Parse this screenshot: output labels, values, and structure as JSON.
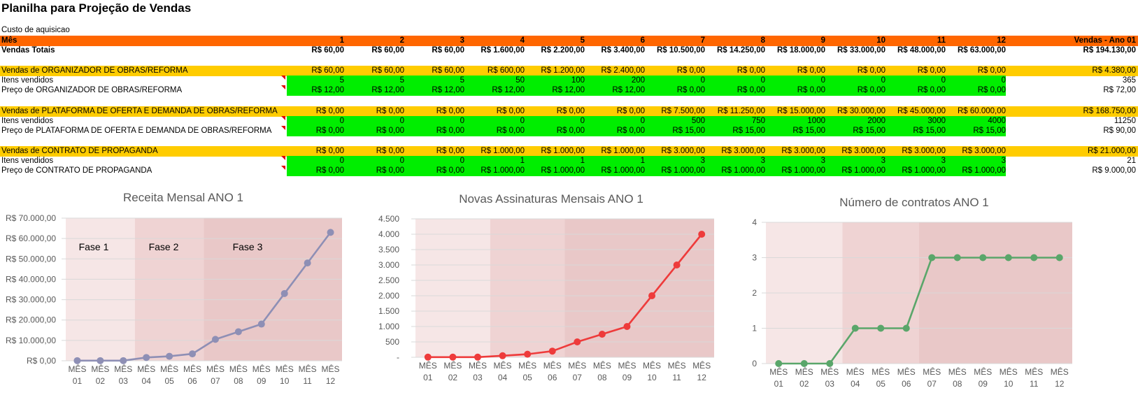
{
  "sheet": {
    "title": "Planilha para Projeção de Vendas",
    "subtitle": "Custo de aquisicao",
    "header": {
      "label": "Mês",
      "months": [
        "1",
        "2",
        "3",
        "4",
        "5",
        "6",
        "7",
        "8",
        "9",
        "10",
        "11",
        "12"
      ],
      "total_label": "Vendas - Ano 01"
    },
    "totals": {
      "label": "Vendas Totais",
      "values": [
        "R$ 60,00",
        "R$ 60,00",
        "R$ 60,00",
        "R$ 1.600,00",
        "R$ 2.200,00",
        "R$ 3.400,00",
        "R$ 10.500,00",
        "R$ 14.250,00",
        "R$ 18.000,00",
        "R$ 33.000,00",
        "R$ 48.000,00",
        "R$ 63.000,00"
      ],
      "total": "R$ 194.130,00"
    },
    "sections": [
      {
        "sales_label": "Vendas de ORGANIZADOR DE OBRAS/REFORMA",
        "sales": [
          "R$ 60,00",
          "R$ 60,00",
          "R$ 60,00",
          "R$ 600,00",
          "R$ 1.200,00",
          "R$ 2.400,00",
          "R$ 0,00",
          "R$ 0,00",
          "R$ 0,00",
          "R$ 0,00",
          "R$ 0,00",
          "R$ 0,00"
        ],
        "sales_total": "R$ 4.380,00",
        "items_label": "Itens vendidos",
        "items": [
          "5",
          "5",
          "5",
          "50",
          "100",
          "200",
          "0",
          "0",
          "0",
          "0",
          "0",
          "0"
        ],
        "items_total": "365",
        "price_label": "Preço de ORGANIZADOR DE OBRAS/REFORMA",
        "prices": [
          "R$ 12,00",
          "R$ 12,00",
          "R$ 12,00",
          "R$ 12,00",
          "R$ 12,00",
          "R$ 12,00",
          "R$ 0,00",
          "R$ 0,00",
          "R$ 0,00",
          "R$ 0,00",
          "R$ 0,00",
          "R$ 0,00"
        ],
        "price_total": "R$ 72,00"
      },
      {
        "sales_label": "Vendas de PLATAFORMA DE OFERTA E DEMANDA DE OBRAS/REFORMA",
        "sales": [
          "R$ 0,00",
          "R$ 0,00",
          "R$ 0,00",
          "R$ 0,00",
          "R$ 0,00",
          "R$ 0,00",
          "R$ 7.500,00",
          "R$ 11.250,00",
          "R$ 15.000,00",
          "R$ 30.000,00",
          "R$ 45.000,00",
          "R$ 60.000,00"
        ],
        "sales_total": "R$ 168.750,00",
        "items_label": "Itens vendidos",
        "items": [
          "0",
          "0",
          "0",
          "0",
          "0",
          "0",
          "500",
          "750",
          "1000",
          "2000",
          "3000",
          "4000"
        ],
        "items_total": "11250",
        "price_label": "Preço de PLATAFORMA DE OFERTA E DEMANDA DE OBRAS/REFORMA",
        "prices": [
          "R$ 0,00",
          "R$ 0,00",
          "R$ 0,00",
          "R$ 0,00",
          "R$ 0,00",
          "R$ 0,00",
          "R$ 15,00",
          "R$ 15,00",
          "R$ 15,00",
          "R$ 15,00",
          "R$ 15,00",
          "R$ 15,00"
        ],
        "price_total": "R$ 90,00"
      },
      {
        "sales_label": "Vendas de CONTRATO DE PROPAGANDA",
        "sales": [
          "R$ 0,00",
          "R$ 0,00",
          "R$ 0,00",
          "R$ 1.000,00",
          "R$ 1.000,00",
          "R$ 1.000,00",
          "R$ 3.000,00",
          "R$ 3.000,00",
          "R$ 3.000,00",
          "R$ 3.000,00",
          "R$ 3.000,00",
          "R$ 3.000,00"
        ],
        "sales_total": "R$ 21.000,00",
        "items_label": "Itens vendidos",
        "items": [
          "0",
          "0",
          "0",
          "1",
          "1",
          "1",
          "3",
          "3",
          "3",
          "3",
          "3",
          "3"
        ],
        "items_total": "21",
        "price_label": "Preço de CONTRATO DE PROPAGANDA",
        "prices": [
          "R$ 0,00",
          "R$ 0,00",
          "R$ 0,00",
          "R$ 1.000,00",
          "R$ 1.000,00",
          "R$ 1.000,00",
          "R$ 1.000,00",
          "R$ 1.000,00",
          "R$ 1.000,00",
          "R$ 1.000,00",
          "R$ 1.000,00",
          "R$ 1.000,00"
        ],
        "price_total": "R$ 9.000,00"
      }
    ]
  },
  "colors": {
    "header_orange": "#ff6600",
    "section_yellow": "#ffcc00",
    "input_green": "#00ee00",
    "phase1": "#f6e6e6",
    "phase2": "#efd3d3",
    "phase3": "#e9c8c8",
    "revenue_line": "#8e8fb5",
    "subs_line": "#ee3b3b",
    "contracts_line": "#5aa66a"
  },
  "chart_data": [
    {
      "type": "line",
      "title": "Receita Mensal ANO 1",
      "x": [
        "MÊS\n01",
        "MÊS\n02",
        "MÊS\n03",
        "MÊS\n04",
        "MÊS\n05",
        "MÊS\n06",
        "MÊS\n07",
        "MÊS\n08",
        "MÊS\n09",
        "MÊS\n10",
        "MÊS\n11",
        "MÊS\n12"
      ],
      "series": [
        {
          "values": [
            60,
            60,
            60,
            1600,
            2200,
            3400,
            10500,
            14250,
            18000,
            33000,
            48000,
            63000
          ]
        }
      ],
      "ylim": [
        0,
        70000
      ],
      "yticks": [
        "R$ 0,00",
        "R$ 10.000,00",
        "R$ 20.000,00",
        "R$ 30.000,00",
        "R$ 40.000,00",
        "R$ 50.000,00",
        "R$ 60.000,00",
        "R$ 70.000,00"
      ],
      "phases": [
        "Fase 1",
        "Fase 2",
        "Fase 3"
      ],
      "grid": true
    },
    {
      "type": "line",
      "title": "Novas Assinaturas Mensais ANO 1",
      "x": [
        "MÊS\n01",
        "MÊS\n02",
        "MÊS\n03",
        "MÊS\n04",
        "MÊS\n05",
        "MÊS\n06",
        "MÊS\n07",
        "MÊS\n08",
        "MÊS\n09",
        "MÊS\n10",
        "MÊS\n11",
        "MÊS\n12"
      ],
      "series": [
        {
          "values": [
            5,
            5,
            5,
            50,
            100,
            200,
            500,
            750,
            1000,
            2000,
            3000,
            4000
          ]
        }
      ],
      "ylim": [
        0,
        4500
      ],
      "yticks": [
        "-",
        "500",
        "1.000",
        "1.500",
        "2.000",
        "2.500",
        "3.000",
        "3.500",
        "4.000",
        "4.500"
      ],
      "grid": true
    },
    {
      "type": "line",
      "title": "Número de contratos ANO 1",
      "x": [
        "MÊS\n01",
        "MÊS\n02",
        "MÊS\n03",
        "MÊS\n04",
        "MÊS\n05",
        "MÊS\n06",
        "MÊS\n07",
        "MÊS\n08",
        "MÊS\n09",
        "MÊS\n10",
        "MÊS\n11",
        "MÊS\n12"
      ],
      "series": [
        {
          "values": [
            0,
            0,
            0,
            1,
            1,
            1,
            3,
            3,
            3,
            3,
            3,
            3
          ]
        }
      ],
      "ylim": [
        0,
        4
      ],
      "yticks": [
        "0",
        "1",
        "2",
        "3",
        "4"
      ],
      "grid": true
    }
  ]
}
